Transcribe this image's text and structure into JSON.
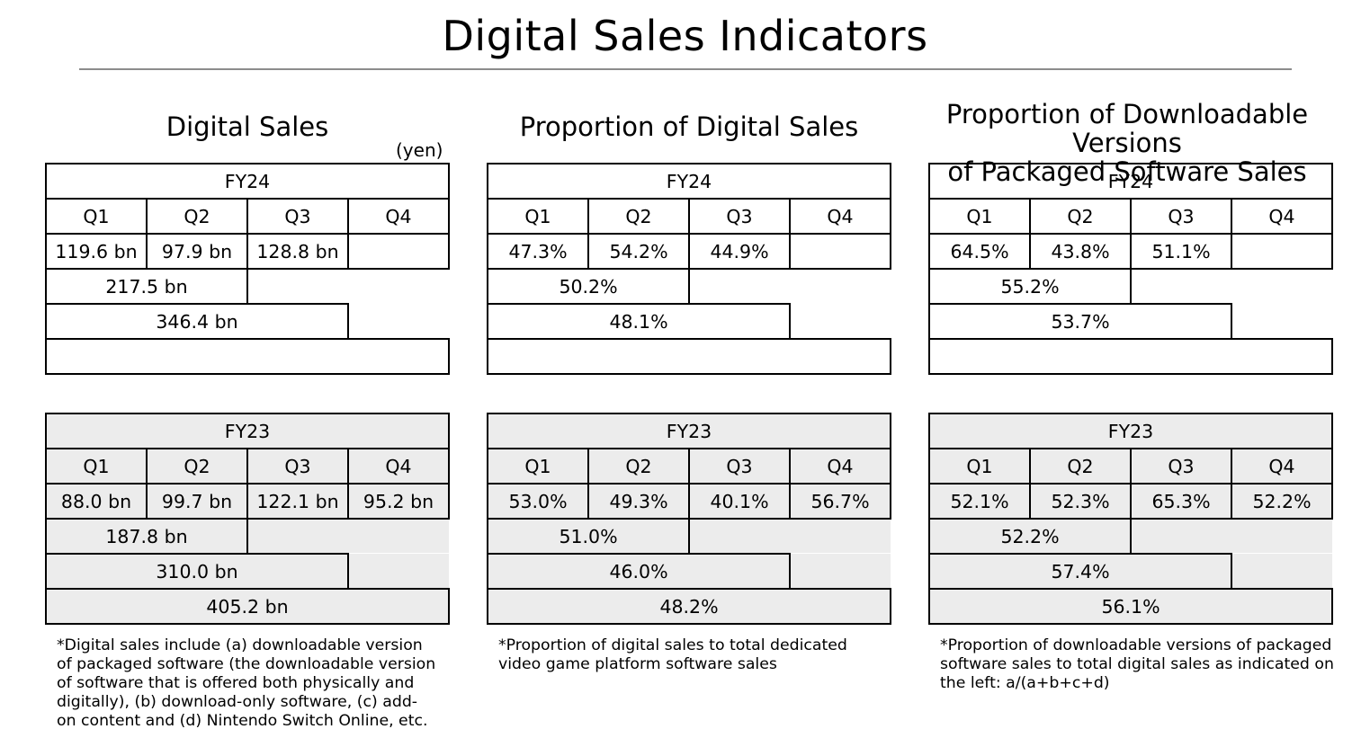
{
  "title": "Digital Sales Indicators",
  "sections": [
    {
      "title": "Digital Sales",
      "unit": "(yen)",
      "fy24": {
        "label": "FY24",
        "quarters": [
          "Q1",
          "Q2",
          "Q3",
          "Q4"
        ],
        "values": [
          "119.6 bn",
          "97.9 bn",
          "128.8 bn",
          ""
        ],
        "h1": "217.5 bn",
        "q1_q3": "346.4 bn",
        "full_year": ""
      },
      "fy23": {
        "label": "FY23",
        "quarters": [
          "Q1",
          "Q2",
          "Q3",
          "Q4"
        ],
        "values": [
          "88.0 bn",
          "99.7 bn",
          "122.1 bn",
          "95.2 bn"
        ],
        "h1": "187.8 bn",
        "q1_q3": "310.0 bn",
        "full_year": "405.2 bn"
      },
      "note": [
        "*Digital sales include (a) downloadable version",
        "of packaged software (the downloadable version",
        "of software that is offered both physically and",
        "digitally), (b) download-only software, (c) add-",
        "on content and (d) Nintendo Switch Online, etc."
      ]
    },
    {
      "title": "Proportion of Digital Sales",
      "fy24": {
        "label": "FY24",
        "quarters": [
          "Q1",
          "Q2",
          "Q3",
          "Q4"
        ],
        "values": [
          "47.3%",
          "54.2%",
          "44.9%",
          ""
        ],
        "h1": "50.2%",
        "q1_q3": "48.1%",
        "full_year": ""
      },
      "fy23": {
        "label": "FY23",
        "quarters": [
          "Q1",
          "Q2",
          "Q3",
          "Q4"
        ],
        "values": [
          "53.0%",
          "49.3%",
          "40.1%",
          "56.7%"
        ],
        "h1": "51.0%",
        "q1_q3": "46.0%",
        "full_year": "48.2%"
      },
      "note": [
        "*Proportion of digital sales to total dedicated",
        "video game platform software sales"
      ]
    },
    {
      "title_lines": [
        "Proportion of Downloadable Versions",
        "of Packaged Software Sales"
      ],
      "fy24": {
        "label": "FY24",
        "quarters": [
          "Q1",
          "Q2",
          "Q3",
          "Q4"
        ],
        "values": [
          "64.5%",
          "43.8%",
          "51.1%",
          ""
        ],
        "h1": "55.2%",
        "q1_q3": "53.7%",
        "full_year": ""
      },
      "fy23": {
        "label": "FY23",
        "quarters": [
          "Q1",
          "Q2",
          "Q3",
          "Q4"
        ],
        "values": [
          "52.1%",
          "52.3%",
          "65.3%",
          "52.2%"
        ],
        "h1": "52.2%",
        "q1_q3": "57.4%",
        "full_year": "56.1%"
      },
      "note": [
        "*Proportion of downloadable versions of packaged",
        "software sales to total digital sales as indicated on",
        "the left: a/(a+b+c+d)"
      ]
    }
  ]
}
